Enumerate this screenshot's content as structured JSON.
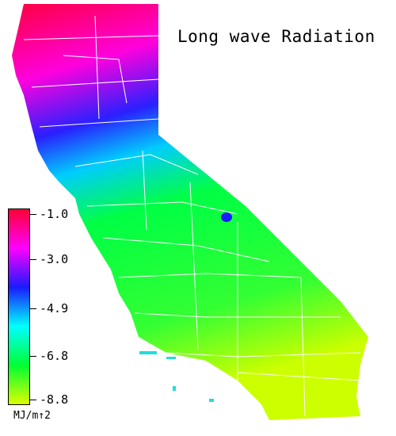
{
  "title": "Long wave Radiation",
  "legend": {
    "ticks": [
      "-1.0",
      "-3.0",
      "-4.9",
      "-6.8",
      "-8.8"
    ],
    "units": "MJ/m↑2",
    "colors": [
      "#ff0033",
      "#ff00ff",
      "#1a1aff",
      "#00ffff",
      "#00ff33",
      "#ddff00"
    ]
  }
}
